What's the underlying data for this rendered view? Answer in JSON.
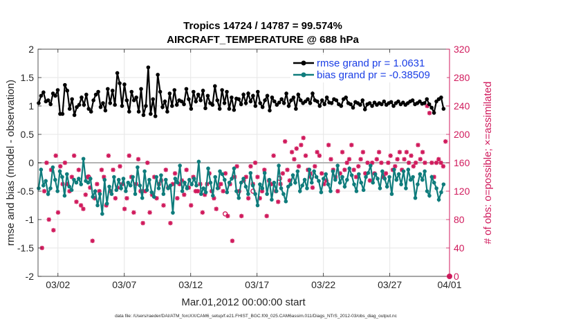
{
  "chart_data": {
    "type": "line",
    "title": "Tropics 14724 / 14787 = 99.574%",
    "subtitle": "AIRCRAFT_TEMPERATURE @ 688 hPa",
    "xlabel": "Mar.01,2012 00:00:00 start",
    "ylabel": "rmse and bias (model - observation)",
    "y2label": "# of obs: o=possible; ×=assimilated",
    "footer": "data file: /Users/raeder/DAI/ATM_forcXX/CAM6_setup/f.e21.FHIST_BGC.f09_025.CAM6assim.011/Diags_NTrS_2012-03/obs_diag_output.nc",
    "xlim": [
      0.5,
      31.5
    ],
    "ylim": [
      -2,
      2
    ],
    "y2lim": [
      0,
      320
    ],
    "xticks": [
      2,
      7,
      12,
      17,
      22,
      27,
      32
    ],
    "xticklabels": [
      "03/02",
      "03/07",
      "03/12",
      "03/17",
      "03/22",
      "03/27",
      "04/01"
    ],
    "yticks": [
      -2,
      -1.5,
      -1,
      -0.5,
      0,
      0.5,
      1,
      1.5,
      2
    ],
    "yticklabels": [
      "-2",
      "-1.5",
      "-1",
      "-0.5",
      "0",
      "0.5",
      "1",
      "1.5",
      "2"
    ],
    "y2ticks": [
      0,
      40,
      80,
      120,
      160,
      200,
      240,
      280,
      320
    ],
    "y2ticklabels": [
      "0",
      "40",
      "80",
      "120",
      "160",
      "200",
      "240",
      "280",
      "320"
    ],
    "grid": true,
    "legend_position": "top-right",
    "series": [
      {
        "name": "rmse grand pr = 1.0631",
        "color": "#000000",
        "values": [
          1.05,
          1.18,
          1.24,
          1.08,
          1.1,
          1.03,
          1.22,
          1.18,
          1.28,
          0.86,
          0.86,
          1.37,
          1.27,
          0.95,
          1.12,
          0.84,
          0.98,
          1.02,
          1.15,
          1.02,
          1.2,
          0.95,
          0.9,
          1.1,
          1.2,
          1.25,
          0.98,
          1.05,
          0.92,
          1.3,
          1.05,
          1.27,
          1.02,
          1.58,
          1.4,
          1.0,
          1.38,
          1.1,
          0.9,
          1.25,
          1.1,
          1.15,
          0.9,
          1.3,
          0.84,
          1.0,
          1.68,
          0.86,
          1.12,
          0.82,
          1.55,
          1.25,
          0.98,
          1.08,
          0.9,
          1.22,
          1.0,
          1.28,
          1.02,
          1.1,
          1.08,
          1.03,
          1.3,
          1.12,
          0.95,
          1.25,
          1.08,
          1.2,
          1.1,
          1.27,
          0.96,
          1.18,
          1.05,
          1.02,
          1.35,
          1.1,
          0.95,
          1.28,
          1.05,
          1.25,
          0.95,
          1.15,
          0.93,
          1.13,
          1.12,
          1.03,
          1.2,
          1.05,
          1.22,
          1.08,
          1.18,
          1.0,
          1.25,
          1.05,
          0.98,
          1.1,
          1.18,
          0.92,
          1.15,
          1.08,
          1.02,
          1.06,
          1.12,
          1.05,
          1.22,
          1.0,
          1.1,
          1.15,
          0.95,
          1.2,
          1.1,
          1.05,
          1.08,
          1.12,
          1.05,
          1.22,
          1.1,
          1.08,
          1.0,
          1.1,
          1.03,
          1.15,
          1.06,
          1.05,
          1.12,
          1.1,
          1.03,
          1.0,
          1.12,
          1.15,
          1.05,
          1.03,
          0.97,
          1.07,
          1.05,
          1.02,
          1.1,
          0.94,
          1.03,
          1.05,
          1.0,
          1.06,
          1.02,
          1.05,
          1.03,
          1.08,
          1.02,
          1.05,
          1.07,
          1.0,
          1.05,
          1.08,
          1.03,
          1.06,
          1.02,
          1.05,
          1.08,
          1.1,
          1.03,
          1.05,
          1.08,
          1.04,
          1.05,
          1.12,
          1.03,
          0.97,
          0.88,
          1.08,
          1.12,
          1.15,
          0.95
        ]
      },
      {
        "name": "bias grand pr = -0.38509",
        "color": "#0f7c7c",
        "values": [
          -0.45,
          -0.12,
          -0.4,
          -0.32,
          -0.55,
          -0.45,
          -0.08,
          -0.3,
          -0.5,
          -0.15,
          -0.25,
          -0.58,
          -0.2,
          -0.42,
          -0.48,
          -0.3,
          -0.35,
          -0.28,
          -0.38,
          0.07,
          -0.32,
          -0.35,
          -0.28,
          -0.6,
          -0.5,
          -0.75,
          -0.55,
          -0.9,
          -0.3,
          -0.72,
          -0.42,
          -0.55,
          -0.25,
          -0.48,
          -0.3,
          -0.45,
          -0.28,
          -0.5,
          -0.35,
          -0.4,
          -0.25,
          -0.55,
          -0.08,
          -0.4,
          -0.62,
          -0.15,
          -0.48,
          -0.3,
          -0.52,
          -0.6,
          -0.25,
          -0.45,
          -0.22,
          -0.55,
          -0.3,
          -0.45,
          -0.4,
          -0.88,
          -0.28,
          -0.35,
          -0.05,
          -0.5,
          -0.35,
          -0.45,
          -0.3,
          -0.38,
          -0.28,
          -0.4,
          0.02,
          -0.55,
          -0.45,
          -0.52,
          -0.1,
          -0.35,
          -0.58,
          -0.25,
          -0.45,
          -0.15,
          -0.2,
          -0.3,
          -0.52,
          -0.35,
          -0.28,
          -0.1,
          -0.5,
          -0.62,
          -0.35,
          -0.28,
          -0.42,
          -0.55,
          -0.18,
          -0.4,
          -0.55,
          -0.75,
          -0.38,
          -0.45,
          -0.18,
          -0.55,
          -0.3,
          -0.65,
          -0.35,
          -0.5,
          -0.05,
          -0.45,
          -0.55,
          -0.68,
          -0.42,
          -0.38,
          -0.22,
          -0.35,
          -0.15,
          -0.5,
          -0.4,
          -0.3,
          -0.45,
          -0.12,
          -0.35,
          -0.15,
          -0.25,
          -0.32,
          -0.52,
          -0.28,
          -0.2,
          -0.38,
          -0.5,
          -0.15,
          -0.3,
          -0.05,
          -0.35,
          -0.25,
          -0.42,
          -0.3,
          -0.1,
          -0.22,
          -0.38,
          -0.5,
          -0.2,
          -0.35,
          -0.48,
          -0.25,
          -0.18,
          -0.05,
          -0.35,
          -0.2,
          -0.28,
          -0.45,
          -0.15,
          -0.28,
          -0.42,
          -0.25,
          -0.55,
          -0.12,
          -0.3,
          -0.2,
          -0.38,
          -0.15,
          -0.45,
          -0.12,
          -0.3,
          -0.25,
          -0.62,
          -0.38,
          -0.2,
          -0.3,
          -0.15,
          -0.5,
          -0.58,
          -0.25,
          -0.35,
          -0.45,
          -0.65,
          -0.52,
          -0.38
        ]
      }
    ],
    "obs_series": {
      "name": "# of obs (assimilated)",
      "color": "#d01a5c",
      "values": [
        40,
        120,
        160,
        80,
        150,
        65,
        170,
        90,
        155,
        130,
        160,
        130,
        120,
        140,
        170,
        105,
        150,
        100,
        95,
        115,
        140,
        125,
        50,
        110,
        130,
        120,
        150,
        140,
        100,
        170,
        120,
        150,
        110,
        125,
        155,
        130,
        95,
        110,
        170,
        140,
        90,
        130,
        165,
        120,
        75,
        120,
        160,
        90,
        115,
        140,
        110,
        130,
        135,
        100,
        150,
        125,
        75,
        130,
        145,
        110,
        130,
        135,
        115,
        150,
        125,
        100,
        140,
        120,
        120,
        130,
        90,
        115,
        130,
        145,
        120,
        110,
        95,
        125,
        130,
        120,
        145,
        85,
        130,
        50,
        140,
        155,
        120,
        85,
        135,
        140,
        110,
        155,
        130,
        160,
        140,
        110,
        120,
        150,
        85,
        135,
        130,
        170,
        120,
        105,
        130,
        145,
        190,
        150,
        135,
        175,
        165,
        180,
        155,
        185,
        195,
        170,
        150,
        145,
        125,
        155,
        175,
        170,
        145,
        130,
        135,
        185,
        165,
        150,
        140,
        120,
        145,
        175,
        150,
        160,
        165,
        185,
        150,
        140,
        155,
        165,
        175,
        145,
        160,
        135,
        160,
        145,
        165,
        175,
        160,
        140,
        145,
        160,
        170,
        150,
        155,
        165,
        175,
        150,
        165,
        175,
        160,
        170,
        155,
        160,
        185,
        165,
        175,
        160,
        240,
        230,
        160,
        140,
        160,
        165,
        160,
        155,
        190
      ]
    },
    "possible_points": [
      {
        "x": 4.3,
        "v": 140
      },
      {
        "x": 14.6,
        "v": 88
      },
      {
        "x": 16.7,
        "v": 120
      },
      {
        "x": 18.7,
        "v": 138
      },
      {
        "x": 21.1,
        "v": 140
      }
    ],
    "zero_line": 0
  }
}
